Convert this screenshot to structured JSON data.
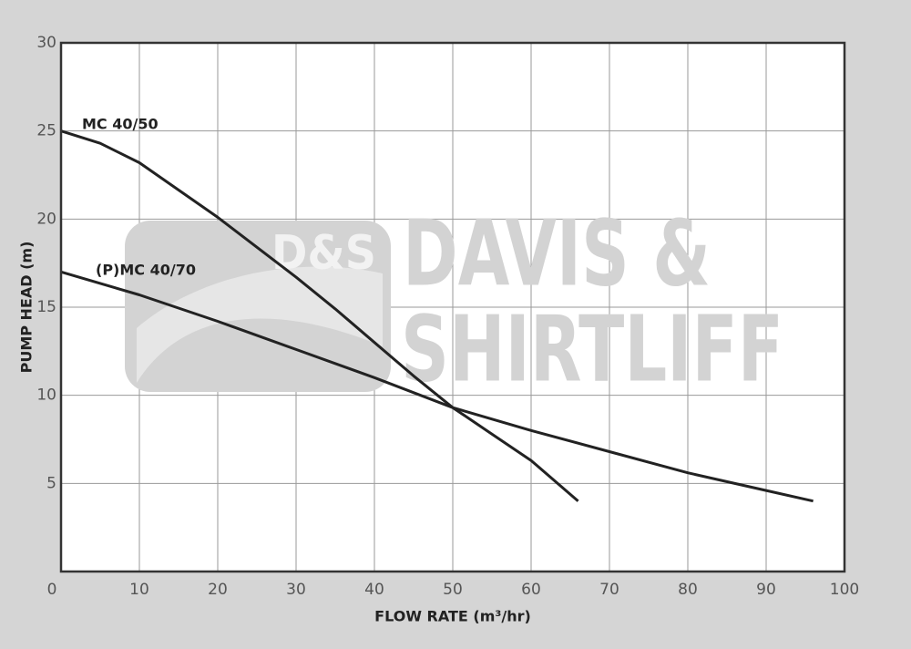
{
  "chart_data": {
    "type": "line",
    "x_label": "FLOW RATE (m³/hr)",
    "y_label": "PUMP HEAD (m)",
    "xlim": [
      0,
      100
    ],
    "ylim": [
      0,
      30
    ],
    "xticks": [
      0,
      10,
      20,
      30,
      40,
      50,
      60,
      70,
      80,
      90,
      100
    ],
    "yticks": [
      5,
      10,
      15,
      20,
      25,
      30
    ],
    "grid": true,
    "watermark": [
      "D&S",
      "DAVIS &",
      "SHIRTLIFF"
    ],
    "series": [
      {
        "name": "MC 40/50",
        "color": "#222222",
        "x": [
          0,
          5,
          10,
          20,
          30,
          35,
          40,
          45,
          50,
          55,
          60,
          66
        ],
        "values": [
          25,
          24.3,
          23.2,
          20.1,
          16.7,
          14.9,
          13.0,
          11.1,
          9.3,
          7.8,
          6.3,
          4
        ]
      },
      {
        "name": "(P)MC 40/70",
        "color": "#222222",
        "x": [
          0,
          10,
          20,
          30,
          40,
          50,
          60,
          70,
          80,
          90,
          96
        ],
        "values": [
          17,
          15.7,
          14.2,
          12.6,
          11.0,
          9.3,
          8.0,
          6.8,
          5.6,
          4.6,
          4
        ]
      }
    ]
  }
}
